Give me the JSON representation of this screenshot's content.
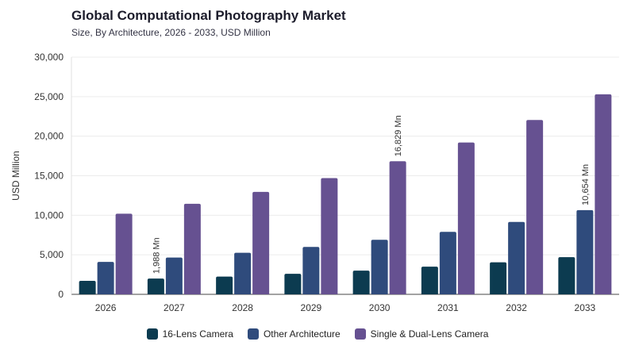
{
  "chart_data": {
    "type": "bar",
    "title": "Global Computational Photography Market",
    "subtitle": "Size, By Architecture, 2026 - 2033, USD Million",
    "xlabel": "",
    "ylabel": "USD Million",
    "ylim": [
      0,
      30000
    ],
    "yticks": [
      "0",
      "5,000",
      "10,000",
      "15,000",
      "20,000",
      "25,000",
      "30,000"
    ],
    "categories": [
      "2026",
      "2027",
      "2028",
      "2029",
      "2030",
      "2031",
      "2032",
      "2033"
    ],
    "series": [
      {
        "name": "16-Lens Camera",
        "color": "#0c3b50",
        "values": [
          1700,
          1988,
          2250,
          2600,
          3000,
          3500,
          4050,
          4700
        ]
      },
      {
        "name": "Other Architecture",
        "color": "#2f4b7c",
        "values": [
          4100,
          4650,
          5250,
          6000,
          6900,
          7900,
          9150,
          10654
        ]
      },
      {
        "name": "Single & Dual-Lens Camera",
        "color": "#665191",
        "values": [
          10200,
          11450,
          12950,
          14700,
          16829,
          19200,
          22050,
          25300
        ]
      }
    ],
    "annotations": [
      {
        "text": "1,988 Mn",
        "category": "2027",
        "series": 0
      },
      {
        "text": "16,829 Mn",
        "category": "2030",
        "series": 2
      },
      {
        "text": "10,654 Mn",
        "category": "2033",
        "series": 1
      }
    ],
    "grid": true,
    "legend_position": "bottom"
  }
}
